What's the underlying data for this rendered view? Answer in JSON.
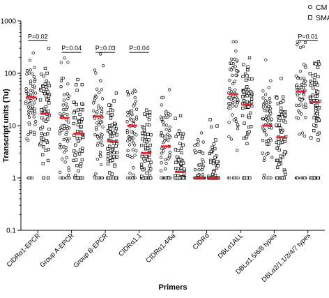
{
  "chart_data": {
    "type": "scatter",
    "scale": "log",
    "xlabel": "Primers",
    "ylabel": "Transcript units (Tu)",
    "ylim": [
      0.1,
      1000
    ],
    "yticks": [
      {
        "value": 0.1,
        "label": "0.1"
      },
      {
        "value": 1,
        "label": "1"
      },
      {
        "value": 10,
        "label": "10"
      },
      {
        "value": 100,
        "label": "100"
      },
      {
        "value": 1000,
        "label": "1000"
      }
    ],
    "grid": false,
    "legend": {
      "position": "top-right",
      "entries": [
        "CM",
        "SMA"
      ]
    },
    "median_color": "#e8262b",
    "categories": [
      "CIDRα1-EPCR",
      "Group A-EPCR",
      "Group B-EPCR",
      "CIDRα1.1",
      "CIDRα1.4/6a",
      "CIDRd",
      "DBLα1ALL",
      "DBLα1.5/6/8 types",
      "DBLα2/1.1/2/4/7 types"
    ],
    "series": [
      {
        "name": "CM",
        "marker": "circle",
        "medians": [
          35,
          14,
          15,
          10,
          4,
          1,
          40,
          10,
          45
        ]
      },
      {
        "name": "SMA",
        "marker": "square",
        "medians": [
          17,
          7,
          5,
          3,
          1.3,
          1,
          25,
          6,
          28
        ]
      }
    ],
    "annotations": [
      {
        "category": "CIDRα1-EPCR",
        "text": "P=0.02"
      },
      {
        "category": "Group A-EPCR",
        "text": "P=0.04"
      },
      {
        "category": "Group B-EPCR",
        "text": "P=0.03"
      },
      {
        "category": "CIDRα1.1",
        "text": "P=0.04"
      },
      {
        "category": "DBLα2/1.1/2/4/7 types",
        "text": "P=0.01"
      }
    ]
  }
}
